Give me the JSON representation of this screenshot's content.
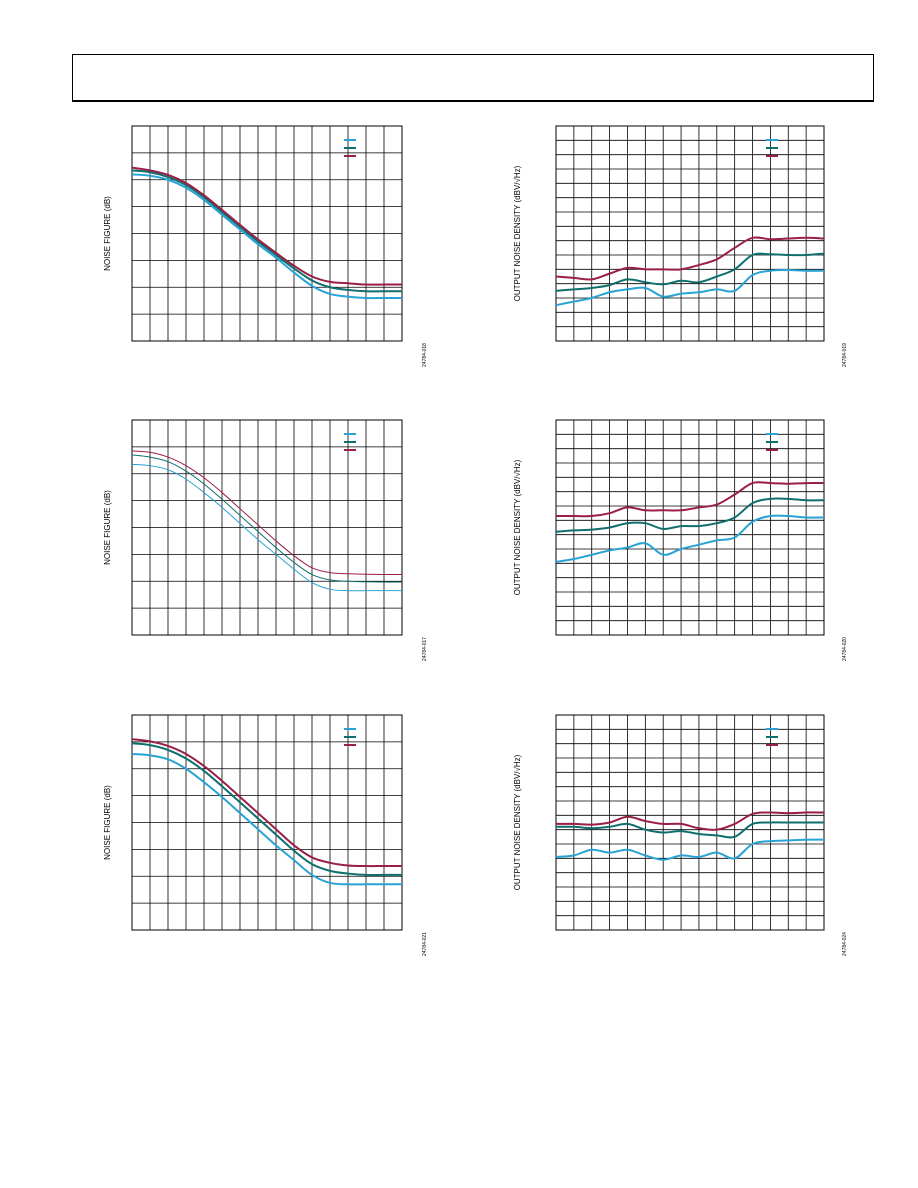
{
  "page": {
    "header": ""
  },
  "colors": {
    "cyan": "#29a3d4",
    "teal": "#0f6e6e",
    "maroon": "#9a1f47",
    "grid": "#000000"
  },
  "chart_data": [
    {
      "id": "nf-1",
      "type": "line",
      "title": "",
      "xlabel": "",
      "ylabel": "NOISE FIGURE (dB)",
      "figure_id": "24784-018",
      "grid": true,
      "legend_placement": "top-right",
      "xlim": [
        0,
        15
      ],
      "ylim": [
        0,
        8
      ],
      "x": [
        0,
        1,
        2,
        3,
        4,
        5,
        6,
        7,
        8,
        9,
        10,
        11,
        12,
        13,
        14,
        15
      ],
      "series": [
        {
          "color": "cyan",
          "width": 2,
          "values": [
            6.2,
            6.15,
            6.0,
            5.7,
            5.25,
            4.7,
            4.15,
            3.6,
            3.1,
            2.55,
            2.05,
            1.75,
            1.65,
            1.6,
            1.6,
            1.6
          ]
        },
        {
          "color": "teal",
          "width": 2,
          "values": [
            6.35,
            6.28,
            6.1,
            5.8,
            5.35,
            4.8,
            4.25,
            3.7,
            3.2,
            2.7,
            2.25,
            2.0,
            1.9,
            1.85,
            1.85,
            1.85
          ]
        },
        {
          "color": "maroon",
          "width": 2,
          "values": [
            6.45,
            6.35,
            6.18,
            5.88,
            5.42,
            4.88,
            4.32,
            3.78,
            3.28,
            2.8,
            2.4,
            2.2,
            2.15,
            2.1,
            2.1,
            2.1
          ]
        }
      ]
    },
    {
      "id": "ond-1",
      "type": "line",
      "title": "",
      "xlabel": "",
      "ylabel": "OUTPUT NOISE DENSITY (dBV/√Hz)",
      "figure_id": "24784-019",
      "grid": true,
      "legend_placement": "top-right",
      "xlim": [
        0,
        15
      ],
      "ylim": [
        0,
        15
      ],
      "x": [
        0,
        1,
        2,
        3,
        4,
        5,
        6,
        7,
        8,
        9,
        10,
        11,
        12,
        13,
        14,
        15
      ],
      "series": [
        {
          "color": "cyan",
          "width": 2,
          "values": [
            2.5,
            2.75,
            3.0,
            3.4,
            3.6,
            3.7,
            3.1,
            3.3,
            3.4,
            3.6,
            3.5,
            4.6,
            4.9,
            4.95,
            4.9,
            4.9
          ]
        },
        {
          "color": "teal",
          "width": 2,
          "values": [
            3.5,
            3.6,
            3.7,
            3.9,
            4.3,
            4.1,
            3.95,
            4.2,
            4.1,
            4.5,
            5.0,
            6.0,
            6.05,
            6.0,
            6.0,
            6.1
          ]
        },
        {
          "color": "maroon",
          "width": 2,
          "values": [
            4.5,
            4.4,
            4.3,
            4.7,
            5.1,
            5.0,
            5.0,
            5.0,
            5.3,
            5.7,
            6.5,
            7.2,
            7.1,
            7.15,
            7.2,
            7.15
          ]
        }
      ]
    },
    {
      "id": "nf-2",
      "type": "line",
      "title": "",
      "xlabel": "",
      "ylabel": "NOISE FIGURE (dB)",
      "figure_id": "24784-017",
      "grid": true,
      "legend_placement": "top-right",
      "xlim": [
        0,
        15
      ],
      "ylim": [
        0,
        8
      ],
      "x": [
        0,
        1,
        2,
        3,
        4,
        5,
        6,
        7,
        8,
        9,
        10,
        11,
        12,
        13,
        14,
        15
      ],
      "series": [
        {
          "color": "cyan",
          "width": 1,
          "values": [
            6.35,
            6.3,
            6.15,
            5.8,
            5.3,
            4.75,
            4.15,
            3.55,
            3.0,
            2.45,
            1.95,
            1.7,
            1.65,
            1.65,
            1.65,
            1.65
          ]
        },
        {
          "color": "teal",
          "width": 1,
          "values": [
            6.7,
            6.62,
            6.45,
            6.1,
            5.62,
            5.05,
            4.45,
            3.85,
            3.25,
            2.7,
            2.25,
            2.05,
            2.0,
            1.98,
            1.97,
            1.97
          ]
        },
        {
          "color": "maroon",
          "width": 1,
          "values": [
            6.85,
            6.8,
            6.62,
            6.3,
            5.85,
            5.3,
            4.7,
            4.1,
            3.5,
            2.95,
            2.5,
            2.32,
            2.28,
            2.26,
            2.25,
            2.25
          ]
        }
      ]
    },
    {
      "id": "ond-2",
      "type": "line",
      "title": "",
      "xlabel": "",
      "ylabel": "OUTPUT NOISE DENSITY (dBV/√Hz)",
      "figure_id": "24784-020",
      "grid": true,
      "legend_placement": "top-right",
      "xlim": [
        0,
        15
      ],
      "ylim": [
        0,
        15
      ],
      "x": [
        0,
        1,
        2,
        3,
        4,
        5,
        6,
        7,
        8,
        9,
        10,
        11,
        12,
        13,
        14,
        15
      ],
      "series": [
        {
          "color": "cyan",
          "width": 2,
          "values": [
            5.1,
            5.3,
            5.6,
            5.9,
            6.1,
            6.4,
            5.6,
            6.0,
            6.3,
            6.6,
            6.8,
            7.9,
            8.3,
            8.3,
            8.2,
            8.2
          ]
        },
        {
          "color": "teal",
          "width": 2,
          "values": [
            7.2,
            7.3,
            7.35,
            7.5,
            7.8,
            7.8,
            7.4,
            7.6,
            7.6,
            7.8,
            8.2,
            9.2,
            9.5,
            9.5,
            9.4,
            9.4
          ]
        },
        {
          "color": "maroon",
          "width": 2,
          "values": [
            8.3,
            8.3,
            8.3,
            8.5,
            8.9,
            8.7,
            8.7,
            8.7,
            8.9,
            9.1,
            9.8,
            10.6,
            10.6,
            10.55,
            10.6,
            10.6
          ]
        }
      ]
    },
    {
      "id": "nf-3",
      "type": "line",
      "title": "",
      "xlabel": "",
      "ylabel": "NOISE FIGURE (dB)",
      "figure_id": "24784-021",
      "grid": true,
      "legend_placement": "top-right",
      "xlim": [
        0,
        15
      ],
      "ylim": [
        0,
        8
      ],
      "x": [
        0,
        1,
        2,
        3,
        4,
        5,
        6,
        7,
        8,
        9,
        10,
        11,
        12,
        13,
        14,
        15
      ],
      "series": [
        {
          "color": "cyan",
          "width": 2,
          "values": [
            6.55,
            6.5,
            6.35,
            6.0,
            5.5,
            4.95,
            4.35,
            3.75,
            3.15,
            2.6,
            2.05,
            1.75,
            1.7,
            1.7,
            1.7,
            1.7
          ]
        },
        {
          "color": "teal",
          "width": 2,
          "values": [
            6.95,
            6.88,
            6.7,
            6.38,
            5.92,
            5.35,
            4.75,
            4.15,
            3.55,
            2.95,
            2.45,
            2.2,
            2.1,
            2.05,
            2.05,
            2.05
          ]
        },
        {
          "color": "maroon",
          "width": 2,
          "values": [
            7.1,
            7.02,
            6.85,
            6.55,
            6.1,
            5.55,
            4.95,
            4.35,
            3.75,
            3.15,
            2.7,
            2.5,
            2.4,
            2.38,
            2.38,
            2.38
          ]
        }
      ]
    },
    {
      "id": "ond-3",
      "type": "line",
      "title": "",
      "xlabel": "",
      "ylabel": "OUTPUT NOISE DENSITY (dBV/√Hz)",
      "figure_id": "24784-024",
      "grid": true,
      "legend_placement": "top-right",
      "xlim": [
        0,
        15
      ],
      "ylim": [
        0,
        15
      ],
      "x": [
        0,
        1,
        2,
        3,
        4,
        5,
        6,
        7,
        8,
        9,
        10,
        11,
        12,
        13,
        14,
        15
      ],
      "series": [
        {
          "color": "cyan",
          "width": 2,
          "values": [
            5.1,
            5.2,
            5.6,
            5.4,
            5.6,
            5.2,
            4.9,
            5.2,
            5.1,
            5.4,
            5.0,
            6.0,
            6.2,
            6.25,
            6.3,
            6.3
          ]
        },
        {
          "color": "teal",
          "width": 2,
          "values": [
            7.2,
            7.2,
            7.1,
            7.2,
            7.4,
            7.0,
            6.8,
            6.9,
            6.7,
            6.6,
            6.5,
            7.4,
            7.5,
            7.5,
            7.5,
            7.5
          ]
        },
        {
          "color": "maroon",
          "width": 2,
          "values": [
            7.4,
            7.4,
            7.35,
            7.5,
            7.9,
            7.6,
            7.4,
            7.4,
            7.1,
            7.0,
            7.4,
            8.1,
            8.2,
            8.15,
            8.2,
            8.2
          ]
        }
      ]
    }
  ]
}
